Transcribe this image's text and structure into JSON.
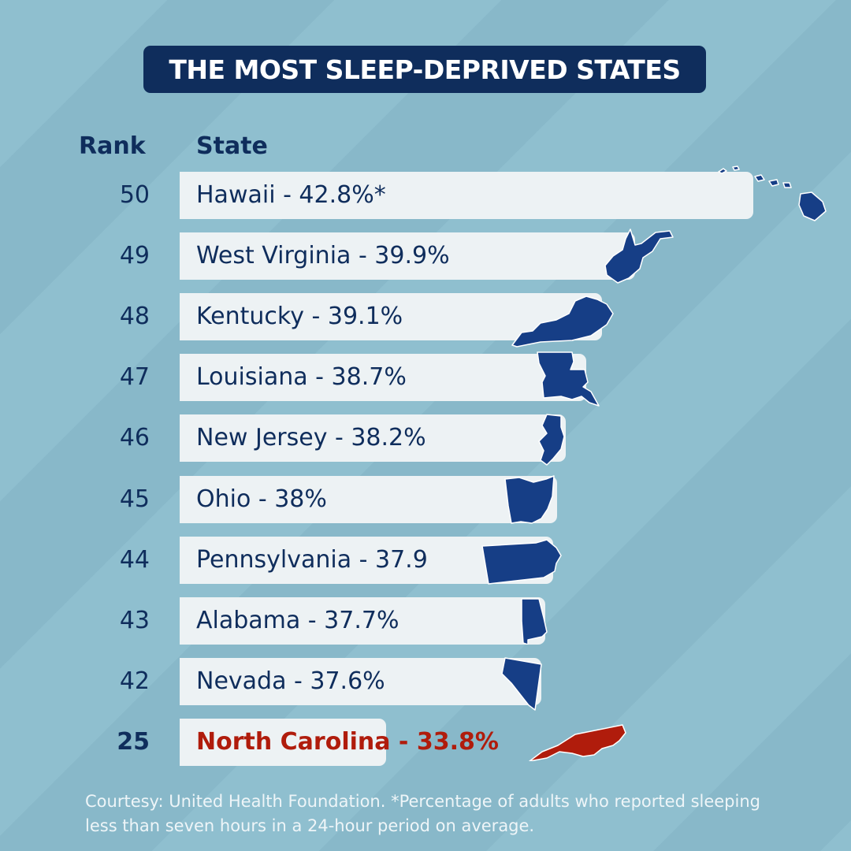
{
  "title": "THE MOST SLEEP-DEPRIVED STATES",
  "headers": {
    "rank": "Rank",
    "state": "State"
  },
  "chart_data": {
    "type": "bar",
    "title": "THE MOST SLEEP-DEPRIVED STATES",
    "rows": [
      {
        "rank": "50",
        "state": "Hawaii",
        "value": 42.8,
        "label": "Hawaii - 42.8%*"
      },
      {
        "rank": "49",
        "state": "West Virginia",
        "value": 39.9,
        "label": "West Virginia - 39.9%"
      },
      {
        "rank": "48",
        "state": "Kentucky",
        "value": 39.1,
        "label": "Kentucky - 39.1%"
      },
      {
        "rank": "47",
        "state": "Louisiana",
        "value": 38.7,
        "label": "Louisiana - 38.7%"
      },
      {
        "rank": "46",
        "state": "New Jersey",
        "value": 38.2,
        "label": "New Jersey - 38.2%"
      },
      {
        "rank": "45",
        "state": "Ohio",
        "value": 38.0,
        "label": "Ohio - 38%"
      },
      {
        "rank": "44",
        "state": "Pennsylvania",
        "value": 37.9,
        "label": "Pennsylvania - 37.9"
      },
      {
        "rank": "43",
        "state": "Alabama",
        "value": 37.7,
        "label": "Alabama - 37.7%"
      },
      {
        "rank": "42",
        "state": "Nevada",
        "value": 37.6,
        "label": "Nevada - 37.6%"
      },
      {
        "rank": "25",
        "state": "North Carolina",
        "value": 33.8,
        "label": "North Carolina - 33.8%",
        "highlight": true
      }
    ],
    "colors": {
      "primary": "#0f2d5c",
      "state_fill": "#163e86",
      "highlight": "#b01c0c",
      "bar": "#edf2f4",
      "background": "#8fbfcf"
    }
  },
  "footer": "Courtesy: United Health Foundation. *Percentage of adults who reported sleeping less than seven hours in a 24-hour period on average."
}
